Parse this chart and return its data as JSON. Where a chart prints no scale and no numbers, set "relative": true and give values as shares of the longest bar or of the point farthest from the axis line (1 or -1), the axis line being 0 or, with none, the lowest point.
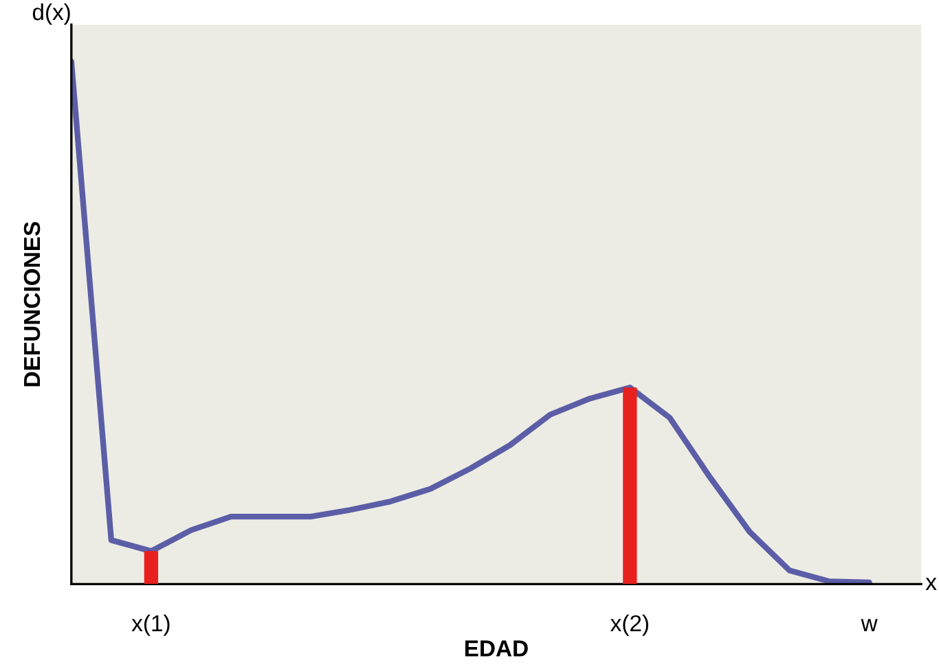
{
  "chart_data": {
    "type": "line",
    "relative": true,
    "xlabel": "EDAD",
    "ylabel": "DEFUNCIONES",
    "annotations": [
      "d(x)",
      "x"
    ],
    "categories": [
      null,
      null,
      "x(1)",
      null,
      null,
      null,
      null,
      null,
      null,
      null,
      null,
      null,
      null,
      null,
      "x(2)",
      null,
      null,
      null,
      null,
      null,
      "w"
    ],
    "series": [
      {
        "color": "#5b5ea6",
        "values": [
          1.0,
          0.084,
          0.063,
          0.103,
          0.129,
          0.129,
          0.129,
          0.142,
          0.158,
          0.182,
          0.221,
          0.266,
          0.324,
          0.355,
          0.376,
          0.318,
          0.205,
          0.1,
          0.026,
          0.005,
          0.003
        ]
      },
      {
        "type": "bar",
        "color": "#e8211f",
        "values": [
          null,
          null,
          0.063,
          null,
          null,
          null,
          null,
          null,
          null,
          null,
          null,
          null,
          null,
          null,
          0.376,
          null,
          null,
          null,
          null,
          null,
          null
        ]
      }
    ],
    "tick_labels": "x",
    "grid": false,
    "legend": false
  }
}
